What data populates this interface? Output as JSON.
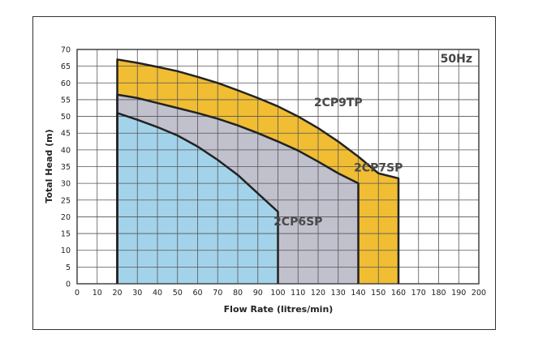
{
  "chart_data": {
    "type": "area",
    "title": "",
    "annotation": "50Hz",
    "xlabel": "Flow Rate (litres/min)",
    "ylabel": "Total Head (m)",
    "xlim": [
      0,
      200
    ],
    "ylim": [
      0,
      70
    ],
    "xticks": [
      0,
      10,
      20,
      30,
      40,
      50,
      60,
      70,
      80,
      90,
      100,
      110,
      120,
      130,
      140,
      150,
      160,
      170,
      180,
      190,
      200
    ],
    "yticks": [
      0,
      5,
      10,
      15,
      20,
      25,
      30,
      35,
      40,
      45,
      50,
      55,
      60,
      65,
      70
    ],
    "grid": true,
    "series": [
      {
        "name": "2CP9TP",
        "color": "#f0bd33",
        "x": [
          20,
          30,
          40,
          50,
          60,
          70,
          80,
          90,
          100,
          110,
          120,
          130,
          140,
          150,
          160
        ],
        "y": [
          67,
          66,
          64.8,
          63.5,
          61.8,
          60,
          57.8,
          55.5,
          53,
          50,
          46.5,
          42.5,
          38,
          33,
          31.5
        ]
      },
      {
        "name": "2CP7SP",
        "color": "#c1c0cd",
        "x": [
          20,
          30,
          40,
          50,
          60,
          70,
          80,
          90,
          100,
          110,
          120,
          130,
          140
        ],
        "y": [
          56.5,
          55.5,
          54,
          52.5,
          51,
          49.3,
          47.3,
          45,
          42.5,
          39.8,
          36.5,
          33,
          30
        ]
      },
      {
        "name": "2CP6SP",
        "color": "#a3d3ea",
        "x": [
          20,
          30,
          40,
          50,
          60,
          70,
          80,
          90,
          100
        ],
        "y": [
          51,
          49,
          46.8,
          44.3,
          41,
          37,
          32.5,
          27,
          21.5
        ]
      }
    ],
    "label_positions_data": [
      [
        130,
        53
      ],
      [
        150,
        33.5
      ],
      [
        110,
        17.5
      ]
    ]
  }
}
